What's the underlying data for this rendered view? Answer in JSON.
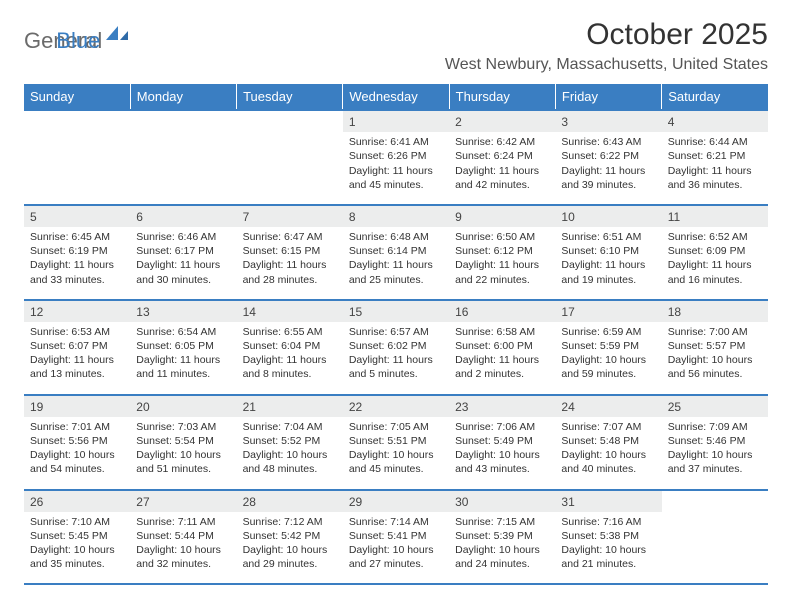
{
  "logo": {
    "text_a": "General",
    "text_b": "Blue",
    "accent_color": "#3a7ec2"
  },
  "header": {
    "month_title": "October 2025",
    "location": "West Newbury, Massachusetts, United States"
  },
  "style": {
    "header_bg": "#3a7ec2",
    "header_text": "#ffffff",
    "daynum_bg": "#eceded",
    "border_color": "#3a7ec2",
    "body_text": "#333333",
    "font_family": "Arial",
    "title_fontsize_pt": 22,
    "location_fontsize_pt": 12,
    "dayheader_fontsize_pt": 10,
    "cell_fontsize_pt": 8
  },
  "day_headers": [
    "Sunday",
    "Monday",
    "Tuesday",
    "Wednesday",
    "Thursday",
    "Friday",
    "Saturday"
  ],
  "weeks": [
    [
      null,
      null,
      null,
      {
        "n": "1",
        "sr": "Sunrise: 6:41 AM",
        "ss": "Sunset: 6:26 PM",
        "d1": "Daylight: 11 hours",
        "d2": "and 45 minutes."
      },
      {
        "n": "2",
        "sr": "Sunrise: 6:42 AM",
        "ss": "Sunset: 6:24 PM",
        "d1": "Daylight: 11 hours",
        "d2": "and 42 minutes."
      },
      {
        "n": "3",
        "sr": "Sunrise: 6:43 AM",
        "ss": "Sunset: 6:22 PM",
        "d1": "Daylight: 11 hours",
        "d2": "and 39 minutes."
      },
      {
        "n": "4",
        "sr": "Sunrise: 6:44 AM",
        "ss": "Sunset: 6:21 PM",
        "d1": "Daylight: 11 hours",
        "d2": "and 36 minutes."
      }
    ],
    [
      {
        "n": "5",
        "sr": "Sunrise: 6:45 AM",
        "ss": "Sunset: 6:19 PM",
        "d1": "Daylight: 11 hours",
        "d2": "and 33 minutes."
      },
      {
        "n": "6",
        "sr": "Sunrise: 6:46 AM",
        "ss": "Sunset: 6:17 PM",
        "d1": "Daylight: 11 hours",
        "d2": "and 30 minutes."
      },
      {
        "n": "7",
        "sr": "Sunrise: 6:47 AM",
        "ss": "Sunset: 6:15 PM",
        "d1": "Daylight: 11 hours",
        "d2": "and 28 minutes."
      },
      {
        "n": "8",
        "sr": "Sunrise: 6:48 AM",
        "ss": "Sunset: 6:14 PM",
        "d1": "Daylight: 11 hours",
        "d2": "and 25 minutes."
      },
      {
        "n": "9",
        "sr": "Sunrise: 6:50 AM",
        "ss": "Sunset: 6:12 PM",
        "d1": "Daylight: 11 hours",
        "d2": "and 22 minutes."
      },
      {
        "n": "10",
        "sr": "Sunrise: 6:51 AM",
        "ss": "Sunset: 6:10 PM",
        "d1": "Daylight: 11 hours",
        "d2": "and 19 minutes."
      },
      {
        "n": "11",
        "sr": "Sunrise: 6:52 AM",
        "ss": "Sunset: 6:09 PM",
        "d1": "Daylight: 11 hours",
        "d2": "and 16 minutes."
      }
    ],
    [
      {
        "n": "12",
        "sr": "Sunrise: 6:53 AM",
        "ss": "Sunset: 6:07 PM",
        "d1": "Daylight: 11 hours",
        "d2": "and 13 minutes."
      },
      {
        "n": "13",
        "sr": "Sunrise: 6:54 AM",
        "ss": "Sunset: 6:05 PM",
        "d1": "Daylight: 11 hours",
        "d2": "and 11 minutes."
      },
      {
        "n": "14",
        "sr": "Sunrise: 6:55 AM",
        "ss": "Sunset: 6:04 PM",
        "d1": "Daylight: 11 hours",
        "d2": "and 8 minutes."
      },
      {
        "n": "15",
        "sr": "Sunrise: 6:57 AM",
        "ss": "Sunset: 6:02 PM",
        "d1": "Daylight: 11 hours",
        "d2": "and 5 minutes."
      },
      {
        "n": "16",
        "sr": "Sunrise: 6:58 AM",
        "ss": "Sunset: 6:00 PM",
        "d1": "Daylight: 11 hours",
        "d2": "and 2 minutes."
      },
      {
        "n": "17",
        "sr": "Sunrise: 6:59 AM",
        "ss": "Sunset: 5:59 PM",
        "d1": "Daylight: 10 hours",
        "d2": "and 59 minutes."
      },
      {
        "n": "18",
        "sr": "Sunrise: 7:00 AM",
        "ss": "Sunset: 5:57 PM",
        "d1": "Daylight: 10 hours",
        "d2": "and 56 minutes."
      }
    ],
    [
      {
        "n": "19",
        "sr": "Sunrise: 7:01 AM",
        "ss": "Sunset: 5:56 PM",
        "d1": "Daylight: 10 hours",
        "d2": "and 54 minutes."
      },
      {
        "n": "20",
        "sr": "Sunrise: 7:03 AM",
        "ss": "Sunset: 5:54 PM",
        "d1": "Daylight: 10 hours",
        "d2": "and 51 minutes."
      },
      {
        "n": "21",
        "sr": "Sunrise: 7:04 AM",
        "ss": "Sunset: 5:52 PM",
        "d1": "Daylight: 10 hours",
        "d2": "and 48 minutes."
      },
      {
        "n": "22",
        "sr": "Sunrise: 7:05 AM",
        "ss": "Sunset: 5:51 PM",
        "d1": "Daylight: 10 hours",
        "d2": "and 45 minutes."
      },
      {
        "n": "23",
        "sr": "Sunrise: 7:06 AM",
        "ss": "Sunset: 5:49 PM",
        "d1": "Daylight: 10 hours",
        "d2": "and 43 minutes."
      },
      {
        "n": "24",
        "sr": "Sunrise: 7:07 AM",
        "ss": "Sunset: 5:48 PM",
        "d1": "Daylight: 10 hours",
        "d2": "and 40 minutes."
      },
      {
        "n": "25",
        "sr": "Sunrise: 7:09 AM",
        "ss": "Sunset: 5:46 PM",
        "d1": "Daylight: 10 hours",
        "d2": "and 37 minutes."
      }
    ],
    [
      {
        "n": "26",
        "sr": "Sunrise: 7:10 AM",
        "ss": "Sunset: 5:45 PM",
        "d1": "Daylight: 10 hours",
        "d2": "and 35 minutes."
      },
      {
        "n": "27",
        "sr": "Sunrise: 7:11 AM",
        "ss": "Sunset: 5:44 PM",
        "d1": "Daylight: 10 hours",
        "d2": "and 32 minutes."
      },
      {
        "n": "28",
        "sr": "Sunrise: 7:12 AM",
        "ss": "Sunset: 5:42 PM",
        "d1": "Daylight: 10 hours",
        "d2": "and 29 minutes."
      },
      {
        "n": "29",
        "sr": "Sunrise: 7:14 AM",
        "ss": "Sunset: 5:41 PM",
        "d1": "Daylight: 10 hours",
        "d2": "and 27 minutes."
      },
      {
        "n": "30",
        "sr": "Sunrise: 7:15 AM",
        "ss": "Sunset: 5:39 PM",
        "d1": "Daylight: 10 hours",
        "d2": "and 24 minutes."
      },
      {
        "n": "31",
        "sr": "Sunrise: 7:16 AM",
        "ss": "Sunset: 5:38 PM",
        "d1": "Daylight: 10 hours",
        "d2": "and 21 minutes."
      },
      null
    ]
  ]
}
